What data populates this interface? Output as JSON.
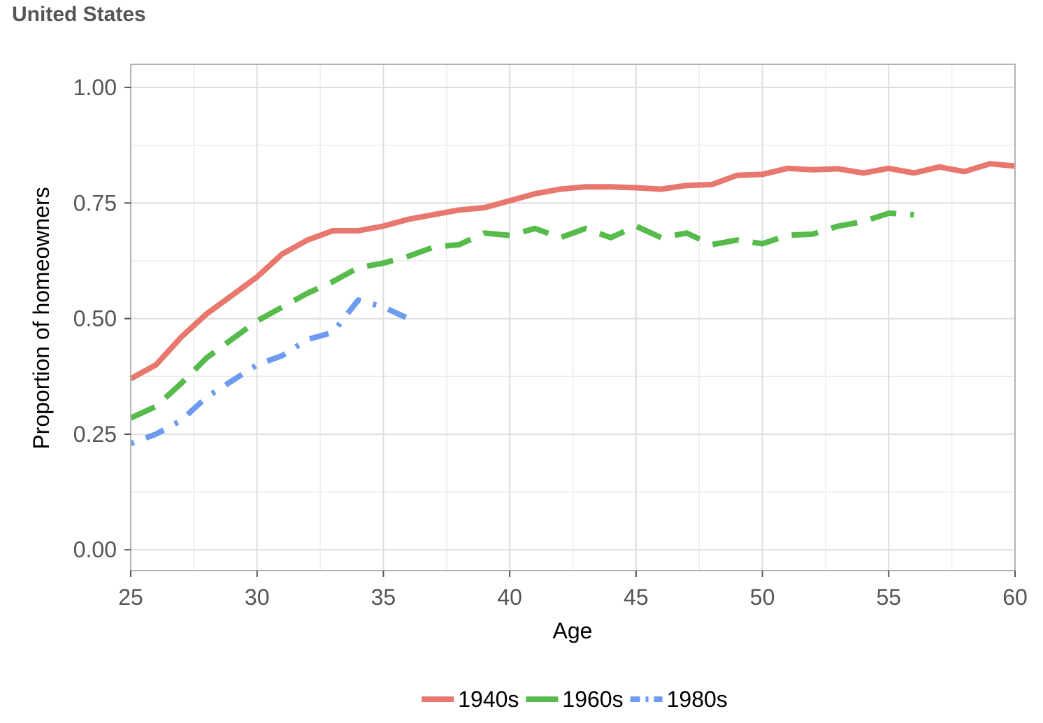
{
  "chart_data": {
    "type": "line",
    "title": "United States",
    "xlabel": "Age",
    "ylabel": "Proportion of homeowners",
    "xlim": [
      25,
      60
    ],
    "ylim": [
      -0.045,
      1.05
    ],
    "x_ticks": [
      25,
      30,
      35,
      40,
      45,
      50,
      55,
      60
    ],
    "x_tick_labels": [
      "25",
      "30",
      "35",
      "40",
      "45",
      "50",
      "55",
      "60"
    ],
    "y_ticks": [
      0,
      0.25,
      0.5,
      0.75,
      1.0
    ],
    "y_tick_labels": [
      "0.00",
      "0.25",
      "0.50",
      "0.75",
      "1.00"
    ],
    "grid": true,
    "legend_position": "bottom",
    "series": [
      {
        "name": "1940s",
        "color": "#E8776D",
        "dash": "solid",
        "x": [
          25,
          26,
          27,
          28,
          29,
          30,
          31,
          32,
          33,
          34,
          35,
          36,
          37,
          38,
          39,
          40,
          41,
          42,
          43,
          44,
          45,
          46,
          47,
          48,
          49,
          50,
          51,
          52,
          53,
          54,
          55,
          56,
          57,
          58,
          59,
          60
        ],
        "y": [
          0.37,
          0.4,
          0.46,
          0.51,
          0.55,
          0.59,
          0.64,
          0.67,
          0.69,
          0.69,
          0.7,
          0.715,
          0.725,
          0.735,
          0.74,
          0.755,
          0.77,
          0.78,
          0.785,
          0.785,
          0.783,
          0.78,
          0.788,
          0.79,
          0.81,
          0.812,
          0.825,
          0.822,
          0.824,
          0.815,
          0.825,
          0.815,
          0.828,
          0.818,
          0.835,
          0.83
        ]
      },
      {
        "name": "1960s",
        "color": "#57BB4B",
        "dash": "dashed",
        "x": [
          25,
          26,
          27,
          28,
          29,
          30,
          31,
          32,
          33,
          34,
          35,
          36,
          37,
          38,
          39,
          40,
          41,
          42,
          43,
          44,
          45,
          46,
          47,
          48,
          49,
          50,
          51,
          52,
          53,
          54,
          55,
          56
        ],
        "y": [
          0.285,
          0.31,
          0.36,
          0.415,
          0.455,
          0.495,
          0.525,
          0.555,
          0.58,
          0.61,
          0.62,
          0.635,
          0.655,
          0.66,
          0.685,
          0.68,
          0.695,
          0.675,
          0.695,
          0.675,
          0.7,
          0.675,
          0.685,
          0.66,
          0.67,
          0.662,
          0.68,
          0.683,
          0.7,
          0.71,
          0.728,
          0.725
        ]
      },
      {
        "name": "1980s",
        "color": "#6C9BEF",
        "dash": "dotdash",
        "x": [
          25,
          26,
          27,
          28,
          29,
          30,
          31,
          32,
          33,
          34,
          35,
          36
        ],
        "y": [
          0.23,
          0.25,
          0.28,
          0.33,
          0.365,
          0.4,
          0.42,
          0.455,
          0.47,
          0.54,
          0.525,
          0.5
        ]
      }
    ]
  }
}
